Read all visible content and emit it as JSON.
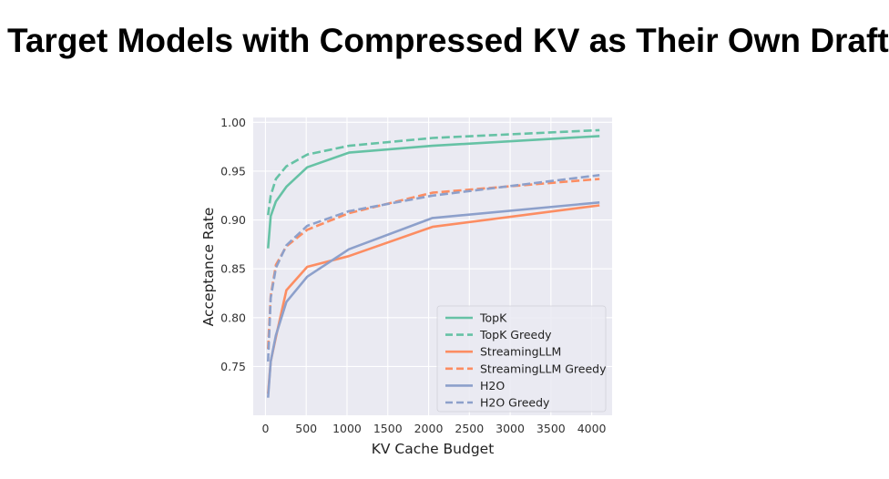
{
  "slide": {
    "title": "Target Models with Compressed KV as Their Own Drafts"
  },
  "chart_data": {
    "type": "line",
    "xlabel": "KV Cache Budget",
    "ylabel": "Acceptance Rate",
    "xlim": [
      -150,
      4250
    ],
    "ylim": [
      0.7,
      1.005
    ],
    "xticks": [
      0,
      500,
      1000,
      1500,
      2000,
      2500,
      3000,
      3500,
      4000
    ],
    "yticks": [
      0.75,
      0.8,
      0.85,
      0.9,
      0.95,
      1.0
    ],
    "ytick_labels": [
      "0.75",
      "0.80",
      "0.85",
      "0.90",
      "0.95",
      "1.00"
    ],
    "grid": true,
    "legend_position": "lower-right",
    "x": [
      32,
      64,
      128,
      256,
      512,
      1024,
      2048,
      4096
    ],
    "series": [
      {
        "name": "TopK",
        "color": "#66c2a5",
        "dash": "solid",
        "values": [
          0.871,
          0.904,
          0.919,
          0.934,
          0.954,
          0.969,
          0.976,
          0.986
        ]
      },
      {
        "name": "TopK Greedy",
        "color": "#66c2a5",
        "dash": "dashed",
        "values": [
          0.905,
          0.925,
          0.942,
          0.955,
          0.967,
          0.976,
          0.984,
          0.992
        ]
      },
      {
        "name": "StreamingLLM",
        "color": "#fc8d62",
        "dash": "solid",
        "values": [
          0.722,
          0.755,
          0.78,
          0.828,
          0.852,
          0.863,
          0.893,
          0.915
        ]
      },
      {
        "name": "StreamingLLM Greedy",
        "color": "#fc8d62",
        "dash": "dashed",
        "values": [
          0.768,
          0.822,
          0.854,
          0.873,
          0.89,
          0.907,
          0.928,
          0.942
        ]
      },
      {
        "name": "H2O",
        "color": "#8da0cb",
        "dash": "solid",
        "values": [
          0.718,
          0.755,
          0.782,
          0.816,
          0.842,
          0.87,
          0.902,
          0.918
        ]
      },
      {
        "name": "H2O Greedy",
        "color": "#8da0cb",
        "dash": "dashed",
        "values": [
          0.755,
          0.82,
          0.851,
          0.874,
          0.894,
          0.909,
          0.925,
          0.946
        ]
      }
    ]
  }
}
